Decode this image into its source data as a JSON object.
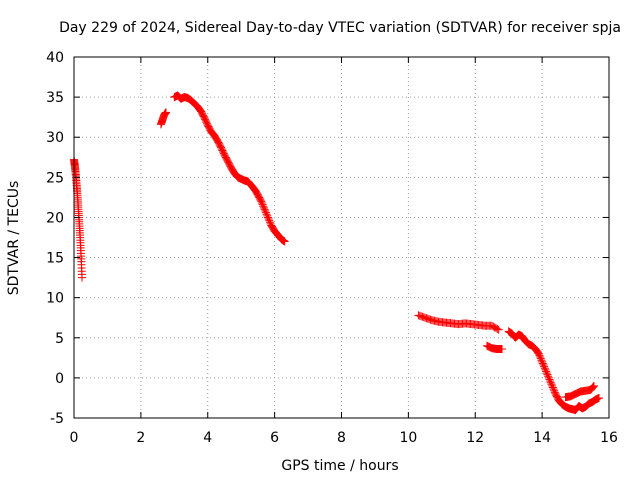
{
  "chart_data": {
    "type": "scatter",
    "title": "Day 229 of 2024, Sidereal Day-to-day VTEC variation (SDTVAR) for receiver spja",
    "xlabel": "GPS time / hours",
    "ylabel": "SDTVAR / TECUs",
    "xlim": [
      0,
      16
    ],
    "ylim": [
      -5,
      40
    ],
    "x_ticks": [
      0,
      2,
      4,
      6,
      8,
      10,
      12,
      14,
      16
    ],
    "y_ticks": [
      -5,
      0,
      5,
      10,
      15,
      20,
      25,
      30,
      35,
      40
    ],
    "grid": true,
    "marker": "plus",
    "color": "#ff0000",
    "series": [
      {
        "name": "segment-1",
        "x": [
          0.0,
          0.02,
          0.04,
          0.06,
          0.08,
          0.1,
          0.12,
          0.14,
          0.16,
          0.18,
          0.2,
          0.22,
          0.24
        ],
        "y": [
          27.2,
          26.6,
          25.9,
          25.0,
          24.0,
          23.0,
          21.8,
          20.5,
          19.2,
          17.8,
          16.2,
          14.5,
          12.5
        ]
      },
      {
        "name": "segment-2",
        "x": [
          2.6,
          2.65,
          2.7,
          2.75
        ],
        "y": [
          31.6,
          32.2,
          32.8,
          33.1
        ]
      },
      {
        "name": "segment-3",
        "x": [
          3.0,
          3.1,
          3.2,
          3.3,
          3.4,
          3.5,
          3.6,
          3.7,
          3.8,
          3.9,
          4.0,
          4.1,
          4.2,
          4.3,
          4.4,
          4.5,
          4.6,
          4.7,
          4.8,
          4.9,
          5.0,
          5.1,
          5.2,
          5.3,
          5.4,
          5.5,
          5.6,
          5.7,
          5.8,
          5.9,
          6.0,
          6.1,
          6.2,
          6.3
        ],
        "y": [
          35.0,
          35.2,
          34.8,
          35.0,
          34.9,
          34.6,
          34.2,
          33.8,
          33.2,
          32.4,
          31.5,
          30.7,
          30.2,
          29.5,
          28.7,
          27.8,
          27.0,
          26.2,
          25.5,
          25.0,
          24.8,
          24.6,
          24.5,
          24.0,
          23.5,
          22.8,
          22.0,
          21.0,
          20.0,
          19.0,
          18.3,
          17.8,
          17.3,
          17.0
        ]
      },
      {
        "name": "segment-4",
        "x": [
          10.3,
          10.5,
          10.7,
          10.9,
          11.1,
          11.3,
          11.5,
          11.7,
          11.9,
          12.1,
          12.3,
          12.5,
          12.7
        ],
        "y": [
          7.8,
          7.5,
          7.2,
          7.0,
          6.9,
          6.8,
          6.7,
          6.8,
          6.7,
          6.6,
          6.5,
          6.5,
          6.0
        ]
      },
      {
        "name": "segment-5",
        "x": [
          12.35,
          12.5,
          12.65,
          12.8
        ],
        "y": [
          4.0,
          3.7,
          3.6,
          3.6
        ]
      },
      {
        "name": "segment-6",
        "x": [
          13.0,
          13.1,
          13.2,
          13.3,
          13.4,
          13.5,
          13.6,
          13.7,
          13.8,
          13.9,
          14.0,
          14.1,
          14.2,
          14.3,
          14.4,
          14.5,
          14.6,
          14.7,
          14.8,
          14.9,
          15.0,
          15.1,
          15.2,
          15.3,
          15.4,
          15.5,
          15.6,
          15.7
        ],
        "y": [
          5.8,
          5.5,
          5.0,
          5.4,
          5.2,
          4.6,
          4.2,
          4.0,
          3.6,
          3.0,
          2.0,
          1.0,
          0.0,
          -1.0,
          -2.0,
          -2.8,
          -3.3,
          -3.6,
          -3.8,
          -3.9,
          -4.0,
          -3.5,
          -3.8,
          -3.6,
          -3.2,
          -3.0,
          -2.7,
          -2.5
        ]
      },
      {
        "name": "segment-7",
        "x": [
          14.7,
          14.85,
          15.0,
          15.15,
          15.3,
          15.45,
          15.55
        ],
        "y": [
          -2.4,
          -2.3,
          -2.0,
          -1.7,
          -1.6,
          -1.5,
          -1.0
        ]
      }
    ]
  }
}
